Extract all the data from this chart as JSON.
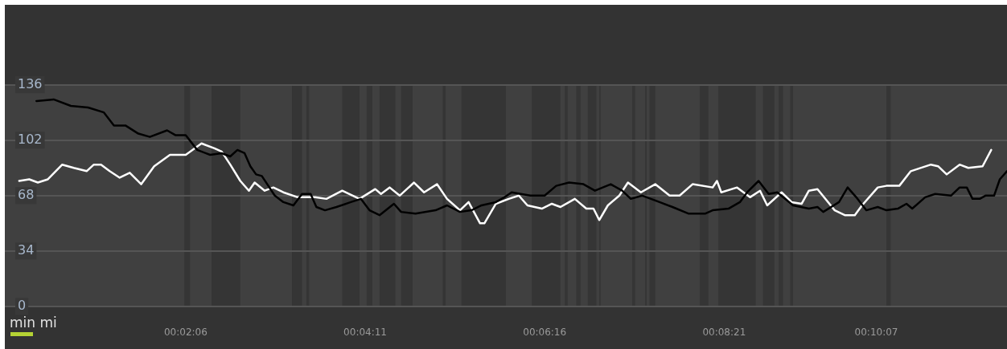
{
  "chart_data": {
    "type": "line",
    "annotations": [
      "min mi"
    ],
    "xlim": [
      0,
      698
    ],
    "ylim": [
      0,
      136
    ],
    "yticks": [
      0,
      34,
      68,
      102,
      136
    ],
    "xticks": [
      {
        "value": 126,
        "label": "00:02:06"
      },
      {
        "value": 251,
        "label": "00:04:11"
      },
      {
        "value": 376,
        "label": "00:06:16"
      },
      {
        "value": 501,
        "label": "00:08:21"
      },
      {
        "value": 607,
        "label": "00:10:07"
      }
    ],
    "grid": "y",
    "legend": false,
    "marker": "none",
    "line_style": "solid",
    "bands": [
      {
        "axis": "x",
        "from": 125,
        "to": 129,
        "color": "#353535"
      },
      {
        "axis": "x",
        "from": 144,
        "to": 164,
        "color": "#353535"
      },
      {
        "axis": "x",
        "from": 200,
        "to": 207,
        "color": "#353535"
      },
      {
        "axis": "x",
        "from": 210,
        "to": 212,
        "color": "#353535"
      },
      {
        "axis": "x",
        "from": 235,
        "to": 247,
        "color": "#353535"
      },
      {
        "axis": "x",
        "from": 252,
        "to": 256,
        "color": "#353535"
      },
      {
        "axis": "x",
        "from": 261,
        "to": 272,
        "color": "#353535"
      },
      {
        "axis": "x",
        "from": 276,
        "to": 284,
        "color": "#353535"
      },
      {
        "axis": "x",
        "from": 305,
        "to": 307,
        "color": "#353535"
      },
      {
        "axis": "x",
        "from": 318,
        "to": 349,
        "color": "#353535"
      },
      {
        "axis": "x",
        "from": 367,
        "to": 387,
        "color": "#353535"
      },
      {
        "axis": "x",
        "from": 390,
        "to": 392,
        "color": "#353535"
      },
      {
        "axis": "x",
        "from": 398,
        "to": 401,
        "color": "#353535"
      },
      {
        "axis": "x",
        "from": 406,
        "to": 412,
        "color": "#353535"
      },
      {
        "axis": "x",
        "from": 414,
        "to": 415,
        "color": "#353535"
      },
      {
        "axis": "x",
        "from": 437,
        "to": 439,
        "color": "#353535"
      },
      {
        "axis": "x",
        "from": 446,
        "to": 447,
        "color": "#353535"
      },
      {
        "axis": "x",
        "from": 449,
        "to": 453,
        "color": "#353535"
      },
      {
        "axis": "x",
        "from": 484,
        "to": 490,
        "color": "#353535"
      },
      {
        "axis": "x",
        "from": 497,
        "to": 523,
        "color": "#353535"
      },
      {
        "axis": "x",
        "from": 528,
        "to": 536,
        "color": "#353535"
      },
      {
        "axis": "x",
        "from": 539,
        "to": 542,
        "color": "#353535"
      },
      {
        "axis": "x",
        "from": 547,
        "to": 549,
        "color": "#353535"
      },
      {
        "axis": "x",
        "from": 614,
        "to": 617,
        "color": "#353535"
      }
    ],
    "series": [
      {
        "color": "#000000",
        "x": [
          22,
          34,
          46,
          58,
          69,
          76,
          84,
          93,
          101,
          113,
          119,
          126,
          134,
          143,
          151,
          157,
          162,
          167,
          171,
          175,
          179,
          188,
          194,
          201,
          207,
          213,
          217,
          223,
          231,
          241,
          248,
          254,
          261,
          271,
          276,
          286,
          300,
          308,
          317,
          325,
          332,
          342,
          348,
          353,
          366,
          376,
          384,
          393,
          403,
          411,
          422,
          430,
          436,
          444,
          456,
          465,
          476,
          488,
          493,
          504,
          512,
          517,
          525,
          532,
          538,
          549,
          560,
          566,
          570,
          581,
          587,
          593,
          600,
          608,
          614,
          622,
          628,
          632,
          641,
          648,
          659,
          665,
          670,
          674,
          679,
          683,
          689,
          693,
          698
        ],
        "values": [
          126,
          127,
          123,
          122,
          119,
          111,
          111,
          106,
          104,
          108,
          105,
          105,
          96,
          93,
          94,
          92,
          96,
          94,
          86,
          81,
          80,
          68,
          64,
          62,
          69,
          69,
          61,
          59,
          61,
          64,
          66,
          59,
          56,
          63,
          58,
          57,
          59,
          62,
          58,
          59,
          62,
          64,
          67,
          70,
          68,
          68,
          74,
          76,
          75,
          71,
          75,
          71,
          66,
          68,
          64,
          61,
          57,
          57,
          59,
          60,
          64,
          70,
          77,
          69,
          70,
          62,
          60,
          61,
          58,
          64,
          73,
          67,
          59,
          61,
          59,
          60,
          63,
          60,
          67,
          69,
          68,
          73,
          73,
          66,
          66,
          68,
          68,
          78,
          83
        ]
      },
      {
        "color": "#ffffff",
        "x": [
          10,
          17,
          23,
          30,
          40,
          48,
          57,
          62,
          67,
          73,
          80,
          87,
          95,
          104,
          115,
          126,
          137,
          146,
          151,
          157,
          164,
          170,
          174,
          181,
          187,
          194,
          204,
          216,
          224,
          235,
          247,
          258,
          262,
          268,
          275,
          285,
          292,
          301,
          308,
          317,
          323,
          331,
          334,
          342,
          351,
          358,
          364,
          374,
          381,
          387,
          397,
          405,
          410,
          414,
          420,
          428,
          434,
          443,
          453,
          463,
          470,
          479,
          493,
          496,
          499,
          510,
          519,
          526,
          531,
          541,
          548,
          555,
          560,
          566,
          578,
          585,
          592,
          597,
          608,
          614,
          623,
          631,
          645,
          650,
          656,
          665,
          671,
          681,
          687
        ],
        "values": [
          77,
          78,
          76,
          78,
          87,
          85,
          83,
          87,
          87,
          83,
          79,
          82,
          75,
          86,
          93,
          93,
          100,
          97,
          95,
          87,
          77,
          71,
          76,
          71,
          73,
          70,
          67,
          67,
          66,
          71,
          66,
          72,
          69,
          73,
          68,
          76,
          70,
          75,
          66,
          59,
          64,
          51,
          51,
          63,
          66,
          68,
          62,
          60,
          63,
          61,
          66,
          60,
          60,
          53,
          62,
          68,
          76,
          70,
          75,
          68,
          68,
          75,
          73,
          77,
          70,
          73,
          67,
          71,
          62,
          70,
          64,
          63,
          71,
          72,
          59,
          56,
          56,
          62,
          73,
          74,
          74,
          83,
          87,
          86,
          81,
          87,
          85,
          86,
          96
        ]
      }
    ]
  }
}
